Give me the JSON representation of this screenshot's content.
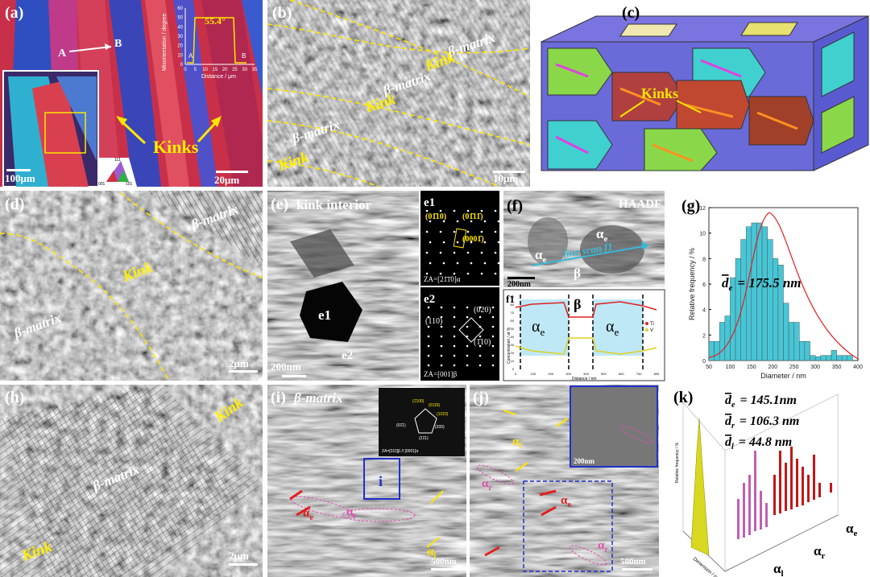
{
  "panels": {
    "a": {
      "label": "(a)",
      "point_a": "A",
      "point_b": "B",
      "kinks": "Kinks",
      "scale_inset": "100μm",
      "scale": "20μm",
      "inset": {
        "peak": "55.4°",
        "start": "A",
        "end": "B",
        "y_title": "Misorientation / degree",
        "x_title": "Distance / μm",
        "yticks": [
          "0",
          "10",
          "20",
          "30",
          "40",
          "50",
          "60"
        ],
        "xticks": [
          "0",
          "5",
          "10",
          "15",
          "20",
          "25",
          "30",
          "35"
        ]
      },
      "ipf": [
        "111",
        "001",
        "101"
      ]
    },
    "b": {
      "label": "(b)",
      "regions": [
        "β-matrix",
        "Kink",
        "β-matrix",
        "Kink",
        "β-matrix",
        "Kink"
      ],
      "scale": "10μm"
    },
    "c": {
      "label": "(c)",
      "kinks": "Kinks"
    },
    "d": {
      "label": "(d)",
      "regions": [
        "β-matrix",
        "Kink",
        "β-matrix"
      ],
      "scale": "2μm"
    },
    "e": {
      "label": "(e)",
      "title": "kink interior",
      "particles": [
        "e1",
        "e2"
      ],
      "scale": "200nm",
      "e1": {
        "label": "e1",
        "spots": [
          "(01̄10)",
          "(01̄11̄)",
          "(0001̄)"
        ],
        "zone": "ZA=[21̄1̄0]α"
      },
      "e2": {
        "label": "e2",
        "spots": [
          "(020)",
          "(110)",
          "(1̄10)"
        ],
        "zone": "ZA=[001]β"
      }
    },
    "f": {
      "label": "(f)",
      "mode": "HAADF",
      "phases": [
        {
          "base": "α",
          "sub": "e"
        },
        {
          "base": "α",
          "sub": "e"
        },
        {
          "base": "β",
          "sub": ""
        }
      ],
      "scan": "line scan f1",
      "scale": "200nm"
    },
    "f1": {
      "label": "f1",
      "phases": [
        {
          "base": "α",
          "sub": "e"
        },
        {
          "base": "β",
          "sub": ""
        },
        {
          "base": "α",
          "sub": "e"
        }
      ],
      "legend": [
        "Ti",
        "V"
      ],
      "y_title": "Concentration / at %",
      "x_title": "Distance / nm",
      "xticks": [
        "0",
        "100",
        "200",
        "300",
        "400",
        "500",
        "600",
        "700",
        "800"
      ],
      "yticks": [
        "0",
        "10",
        "20",
        "30",
        "40",
        "50",
        "60",
        "70",
        "80",
        "90"
      ]
    },
    "g": {
      "label": "(g)",
      "chart": {
        "type": "bar",
        "bins": [
          50,
          62.5,
          75,
          87.5,
          100,
          112.5,
          125,
          137.5,
          150,
          162.5,
          175,
          187.5,
          200,
          212.5,
          225,
          237.5,
          250,
          262.5,
          275,
          287.5,
          300,
          312.5,
          325,
          337.5,
          350,
          362.5,
          375,
          387.5,
          400
        ],
        "values": [
          1.5,
          1.5,
          3,
          3.5,
          6.5,
          8,
          9.5,
          10.5,
          10.8,
          10.8,
          10.5,
          9.5,
          8,
          7.5,
          4.5,
          3,
          3,
          1.5,
          1.5,
          0.4,
          0.3,
          0.4,
          0.4,
          0.8,
          0.4,
          0.4,
          0.4,
          0
        ],
        "color": "#46c6d6",
        "xlim": [
          50,
          400
        ],
        "ylim": [
          0,
          12
        ],
        "xticks": [
          50,
          100,
          150,
          200,
          250,
          300,
          350,
          400
        ],
        "yticks": [
          0,
          2,
          4,
          6,
          8,
          10,
          12
        ],
        "x_label": "Diameter / nm",
        "y_label": "Relative frequency / %",
        "mean": {
          "symbol": "d",
          "sub": "e",
          "text": "= 175.5 nm"
        }
      }
    },
    "h": {
      "label": "(h)",
      "regions": [
        "Kink",
        "β-matrix",
        "Kink"
      ],
      "scale": "2μm"
    },
    "i": {
      "label": "(i)",
      "title": "β-matrix",
      "box": "i",
      "phases": [
        {
          "base": "α",
          "sub": "e"
        },
        {
          "base": "α",
          "sub": "r"
        },
        {
          "base": "α",
          "sub": "l"
        }
      ],
      "scale": "500nm",
      "inset_spots": [
        "(1̄100)",
        "(011̄0)",
        "(101̄0)",
        "(01̄1)",
        "(200)",
        "(21̄1)"
      ],
      "inset_zone": "ZA=[011̄]β // [0001]α"
    },
    "j": {
      "label": "(j)",
      "phases": [
        {
          "base": "α",
          "sub": "l"
        },
        {
          "base": "α",
          "sub": "r"
        },
        {
          "base": "α",
          "sub": "e"
        },
        {
          "base": "α",
          "sub": "r"
        }
      ],
      "inset_scale": "200nm",
      "scale": "500nm"
    },
    "k": {
      "label": "(k)",
      "means": [
        {
          "symbol": "d",
          "sub": "e",
          "text": "= 145.1nm"
        },
        {
          "symbol": "d",
          "sub": "r",
          "text": "= 106.3 nm"
        },
        {
          "symbol": "d",
          "sub": "l",
          "text": "= 44.8 nm"
        }
      ],
      "y_title": "Relative frequency / %",
      "x_title": "Dimension / nm",
      "phases": [
        {
          "base": "α",
          "sub": "e"
        },
        {
          "base": "α",
          "sub": "r"
        },
        {
          "base": "α",
          "sub": "l"
        }
      ]
    }
  }
}
